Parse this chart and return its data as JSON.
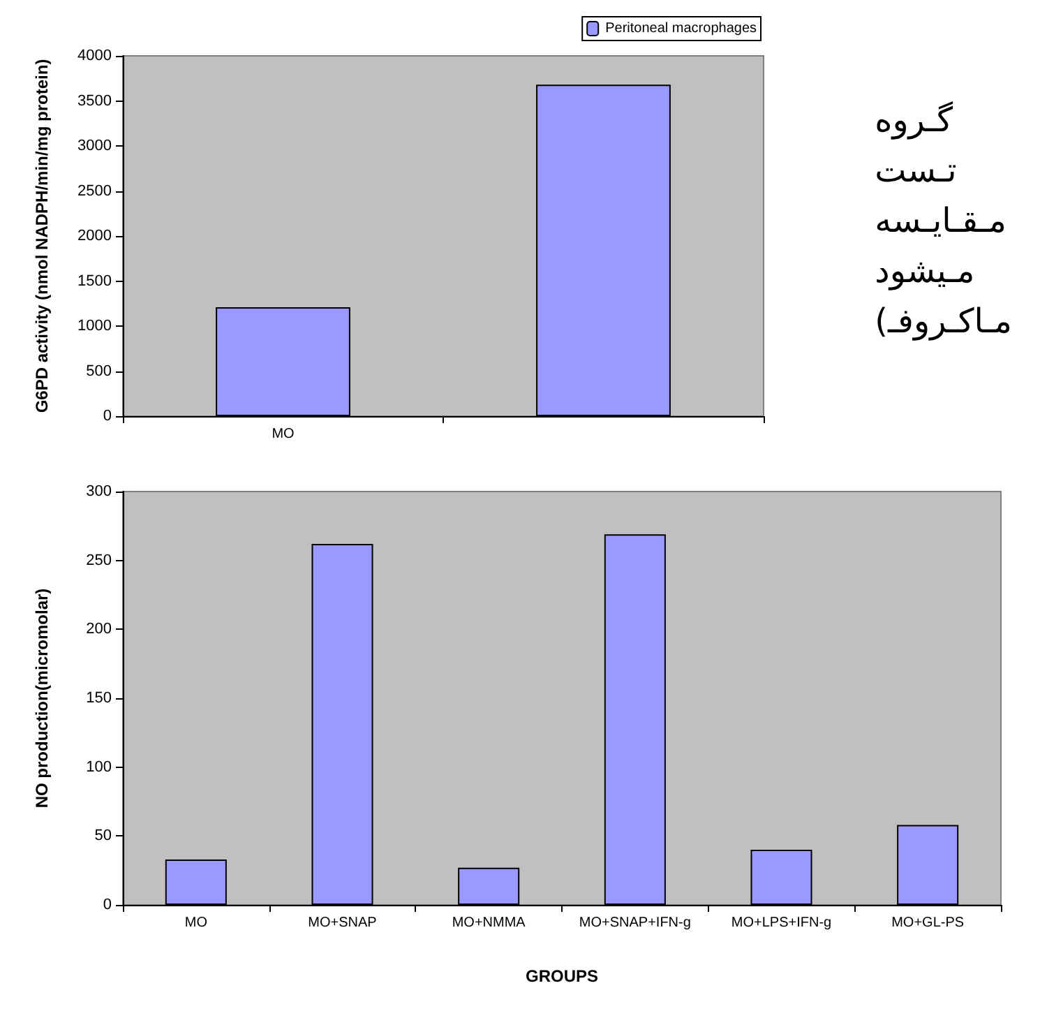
{
  "chart_data": [
    {
      "type": "bar",
      "ylabel": "G6PD activity (nmol NADPH/min/mg protein)",
      "categories": [
        "MO",
        null
      ],
      "series": [
        {
          "name": "Peritoneal macrophages",
          "color": "#9999ff",
          "values": [
            1210,
            3680
          ]
        }
      ],
      "ylim": [
        0,
        4000
      ],
      "yticks": [
        0,
        500,
        1000,
        1500,
        2000,
        2500,
        3000,
        3500,
        4000
      ],
      "grid": false,
      "legend": "top right",
      "annotations": [
        "گـروه\nتـست\nمـقـايـسه\nمـيشود\n(مـاكـروفـ"
      ]
    },
    {
      "type": "bar",
      "xlabel": "GROUPS",
      "ylabel": "NO production(micromolar)",
      "categories": [
        "MO",
        "MO+SNAP",
        "MO+NMMA",
        "MO+SNAP+IFN-g",
        "MO+LPS+IFN-g",
        "MO+GL-PS"
      ],
      "series": [
        {
          "color": "#9999ff",
          "values": [
            33,
            262,
            27,
            269,
            40,
            58
          ]
        }
      ],
      "ylim": [
        0,
        300
      ],
      "yticks": [
        0,
        50,
        100,
        150,
        200,
        250,
        300
      ],
      "grid": false,
      "legend": false
    }
  ]
}
